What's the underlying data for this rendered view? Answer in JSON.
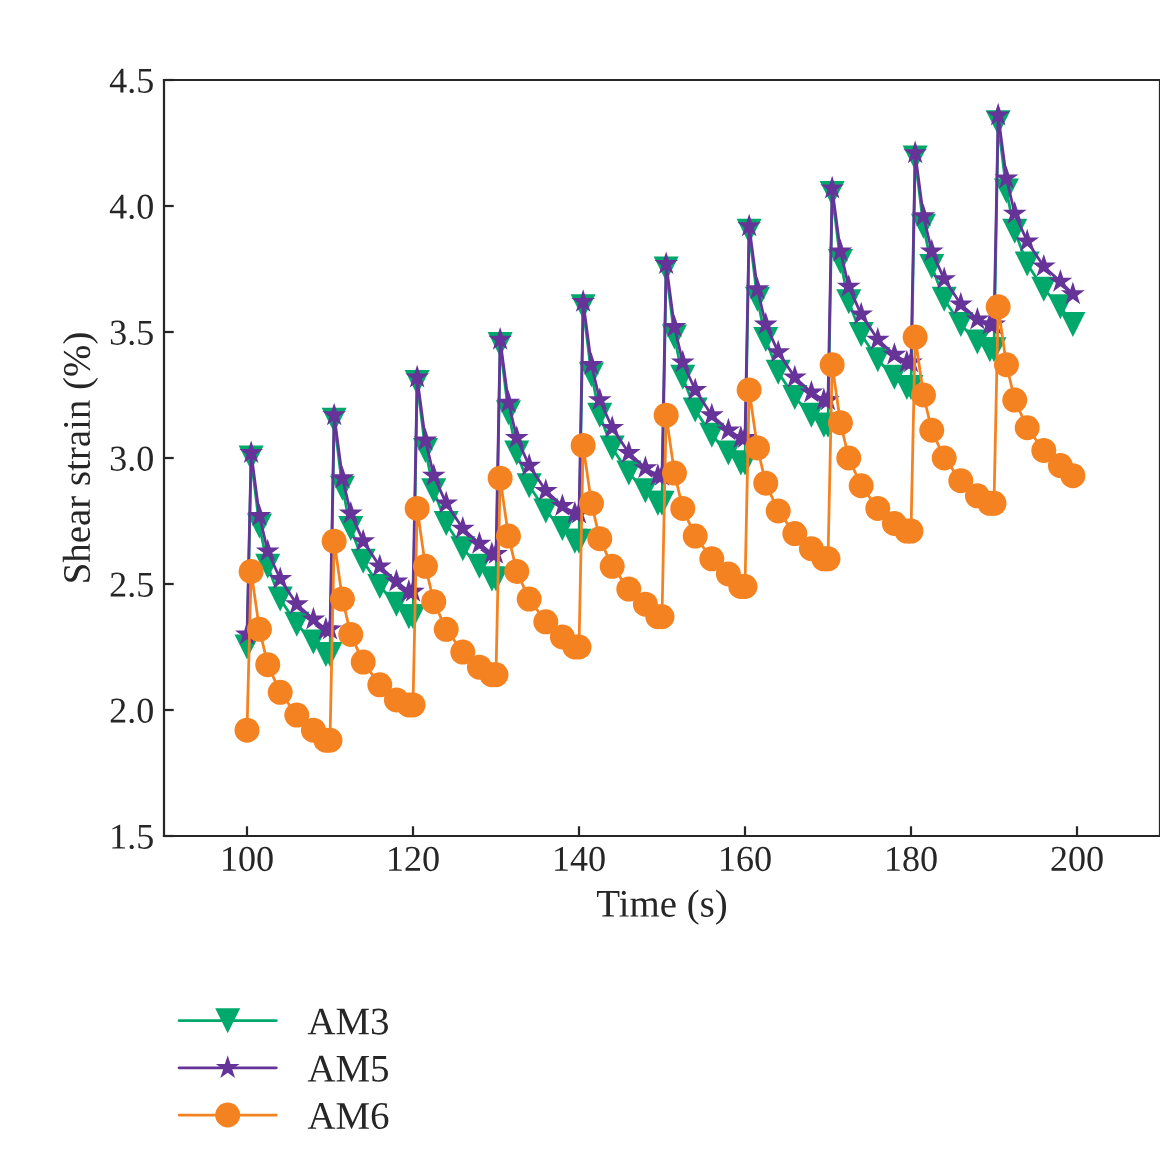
{
  "chart_data": {
    "type": "line",
    "xlabel": "Time (s)",
    "ylabel": "Shear strain (%)",
    "x": [
      100,
      100.5,
      101.5,
      102.5,
      104,
      106,
      108,
      109.5,
      110,
      110.5,
      111.5,
      112.5,
      114,
      116,
      118,
      119.5,
      120,
      120.5,
      121.5,
      122.5,
      124,
      126,
      128,
      129.5,
      130,
      130.5,
      131.5,
      132.5,
      134,
      136,
      138,
      139.5,
      140,
      140.5,
      141.5,
      142.5,
      144,
      146,
      148,
      149.5,
      150,
      150.5,
      151.5,
      152.5,
      154,
      156,
      158,
      159.5,
      160,
      160.5,
      161.5,
      162.5,
      164,
      166,
      168,
      169.5,
      170,
      170.5,
      171.5,
      172.5,
      174,
      176,
      178,
      179.5,
      180,
      180.5,
      181.5,
      182.5,
      184,
      186,
      188,
      189.5,
      190,
      190.5,
      191.5,
      192.5,
      194,
      196,
      198,
      199.5
    ],
    "series": [
      {
        "name": "AM3",
        "color": "#00a86b",
        "marker": "triangle_down",
        "values": [
          2.25,
          3.0,
          2.73,
          2.57,
          2.44,
          2.34,
          2.27,
          2.22,
          2.22,
          3.15,
          2.88,
          2.72,
          2.59,
          2.49,
          2.42,
          2.37,
          2.37,
          3.3,
          3.03,
          2.87,
          2.74,
          2.64,
          2.57,
          2.52,
          2.52,
          3.45,
          3.18,
          3.02,
          2.89,
          2.79,
          2.72,
          2.67,
          2.67,
          3.6,
          3.33,
          3.17,
          3.04,
          2.94,
          2.87,
          2.82,
          2.82,
          3.75,
          3.48,
          3.32,
          3.19,
          3.09,
          3.02,
          2.98,
          2.98,
          3.9,
          3.63,
          3.47,
          3.34,
          3.24,
          3.17,
          3.13,
          3.13,
          4.05,
          3.78,
          3.62,
          3.49,
          3.39,
          3.32,
          3.28,
          3.28,
          4.19,
          3.92,
          3.76,
          3.63,
          3.53,
          3.46,
          3.43,
          3.43,
          4.33,
          4.06,
          3.9,
          3.77,
          3.67,
          3.6,
          3.53
        ]
      },
      {
        "name": "AM5",
        "color": "#663399",
        "marker": "star",
        "values": [
          2.3,
          3.02,
          2.77,
          2.63,
          2.52,
          2.42,
          2.36,
          2.32,
          2.32,
          3.17,
          2.92,
          2.78,
          2.67,
          2.57,
          2.51,
          2.47,
          2.47,
          3.32,
          3.07,
          2.93,
          2.82,
          2.72,
          2.66,
          2.62,
          2.62,
          3.47,
          3.22,
          3.08,
          2.97,
          2.87,
          2.81,
          2.78,
          2.78,
          3.62,
          3.37,
          3.23,
          3.12,
          3.02,
          2.96,
          2.93,
          2.93,
          3.77,
          3.52,
          3.38,
          3.27,
          3.17,
          3.11,
          3.08,
          3.08,
          3.92,
          3.67,
          3.53,
          3.42,
          3.32,
          3.26,
          3.23,
          3.23,
          4.07,
          3.82,
          3.68,
          3.57,
          3.47,
          3.41,
          3.38,
          3.38,
          4.21,
          3.96,
          3.82,
          3.71,
          3.61,
          3.55,
          3.53,
          3.53,
          4.36,
          4.11,
          3.97,
          3.86,
          3.76,
          3.7,
          3.65
        ]
      },
      {
        "name": "AM6",
        "color": "#f58220",
        "marker": "circle",
        "values": [
          1.92,
          2.55,
          2.32,
          2.18,
          2.07,
          1.98,
          1.92,
          1.88,
          1.88,
          2.67,
          2.44,
          2.3,
          2.19,
          2.1,
          2.04,
          2.02,
          2.02,
          2.8,
          2.57,
          2.43,
          2.32,
          2.23,
          2.17,
          2.14,
          2.14,
          2.92,
          2.69,
          2.55,
          2.44,
          2.35,
          2.29,
          2.25,
          2.25,
          3.05,
          2.82,
          2.68,
          2.57,
          2.48,
          2.42,
          2.37,
          2.37,
          3.17,
          2.94,
          2.8,
          2.69,
          2.6,
          2.54,
          2.49,
          2.49,
          3.27,
          3.04,
          2.9,
          2.79,
          2.7,
          2.64,
          2.6,
          2.6,
          3.37,
          3.14,
          3.0,
          2.89,
          2.8,
          2.74,
          2.71,
          2.71,
          3.48,
          3.25,
          3.11,
          3.0,
          2.91,
          2.85,
          2.82,
          2.82,
          3.6,
          3.37,
          3.23,
          3.12,
          3.03,
          2.97,
          2.93
        ]
      }
    ],
    "xlim": [
      90,
      210
    ],
    "xticks": [
      100,
      120,
      140,
      160,
      180,
      200
    ],
    "ylim": [
      1.5,
      4.5
    ],
    "yticks": [
      1.5,
      {
        "value": 2,
        "label": "2.0"
      },
      2.5,
      {
        "value": 3,
        "label": "3.0"
      },
      3.5,
      {
        "value": 4,
        "label": "4.0"
      },
      4.5
    ],
    "grid": false,
    "legend": "bottom left",
    "line_style": "solid"
  }
}
